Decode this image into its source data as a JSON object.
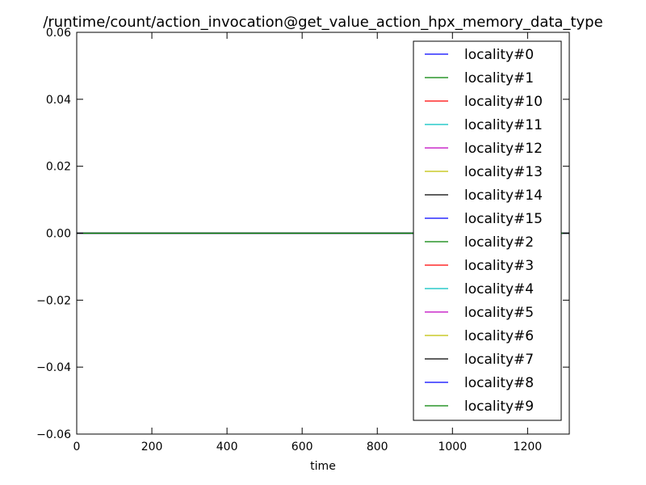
{
  "chart_data": {
    "type": "line",
    "title": "/runtime/count/action_invocation@get_value_action_hpx_memory_data_type",
    "xlabel": "time",
    "ylabel": "",
    "xlim": [
      0,
      1311
    ],
    "ylim": [
      -0.06,
      0.06
    ],
    "xticks": [
      0,
      200,
      400,
      600,
      800,
      1000,
      1200
    ],
    "xtick_labels": [
      "0",
      "200",
      "400",
      "600",
      "800",
      "1000",
      "1200"
    ],
    "yticks": [
      0.06,
      0.04,
      0.02,
      0.0,
      -0.02,
      -0.04,
      -0.06
    ],
    "ytick_labels": [
      "0.06",
      "0.04",
      "0.02",
      "0.00",
      "−0.02",
      "−0.04",
      "−0.06"
    ],
    "grid": false,
    "legend_position": "upper right",
    "x": [
      0,
      1311
    ],
    "series": [
      {
        "name": "locality#0",
        "color": "#0000ff",
        "values": [
          0,
          0
        ]
      },
      {
        "name": "locality#1",
        "color": "#008000",
        "values": [
          0,
          0
        ]
      },
      {
        "name": "locality#10",
        "color": "#ff0000",
        "values": [
          0,
          0
        ]
      },
      {
        "name": "locality#11",
        "color": "#00bfbf",
        "values": [
          0,
          0
        ]
      },
      {
        "name": "locality#12",
        "color": "#bf00bf",
        "values": [
          0,
          0
        ]
      },
      {
        "name": "locality#13",
        "color": "#bfbf00",
        "values": [
          0,
          0
        ]
      },
      {
        "name": "locality#14",
        "color": "#000000",
        "values": [
          0,
          0
        ]
      },
      {
        "name": "locality#15",
        "color": "#0000ff",
        "values": [
          0,
          0
        ]
      },
      {
        "name": "locality#2",
        "color": "#008000",
        "values": [
          0,
          0
        ]
      },
      {
        "name": "locality#3",
        "color": "#ff0000",
        "values": [
          0,
          0
        ]
      },
      {
        "name": "locality#4",
        "color": "#00bfbf",
        "values": [
          0,
          0
        ]
      },
      {
        "name": "locality#5",
        "color": "#bf00bf",
        "values": [
          0,
          0
        ]
      },
      {
        "name": "locality#6",
        "color": "#bfbf00",
        "values": [
          0,
          0
        ]
      },
      {
        "name": "locality#7",
        "color": "#000000",
        "values": [
          0,
          0
        ]
      },
      {
        "name": "locality#8",
        "color": "#0000ff",
        "values": [
          0,
          0
        ]
      },
      {
        "name": "locality#9",
        "color": "#008000",
        "values": [
          0,
          0
        ]
      }
    ]
  }
}
